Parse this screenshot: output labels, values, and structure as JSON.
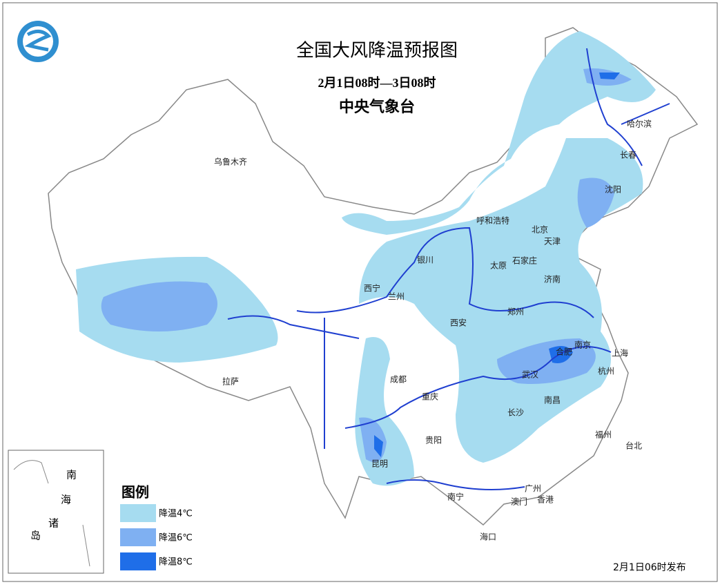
{
  "header": {
    "title": "全国大风降温预报图",
    "period": "2月1日08时—3日08时",
    "issuer": "中央气象台"
  },
  "cities": [
    "乌鲁木齐",
    "哈尔滨",
    "长春",
    "沈阳",
    "呼和浩特",
    "北京",
    "天津",
    "银川",
    "太原",
    "石家庄",
    "济南",
    "西宁",
    "兰州",
    "西安",
    "郑州",
    "合肥",
    "南京",
    "上海",
    "拉萨",
    "成都",
    "武汉",
    "杭州",
    "重庆",
    "南昌",
    "长沙",
    "福州",
    "贵阳",
    "台北",
    "昆明",
    "南宁",
    "广州",
    "澳门",
    "香港",
    "海口"
  ],
  "legend": {
    "title": "图例",
    "items": [
      {
        "label": "降温4℃",
        "color": "#a6dcf0"
      },
      {
        "label": "降温6℃",
        "color": "#7fb0f2"
      },
      {
        "label": "降温8℃",
        "color": "#1f6ee8"
      }
    ]
  },
  "inset": {
    "labels": [
      "南",
      "海",
      "诸",
      "岛"
    ]
  },
  "footer": {
    "release": "2月1日06时发布"
  }
}
